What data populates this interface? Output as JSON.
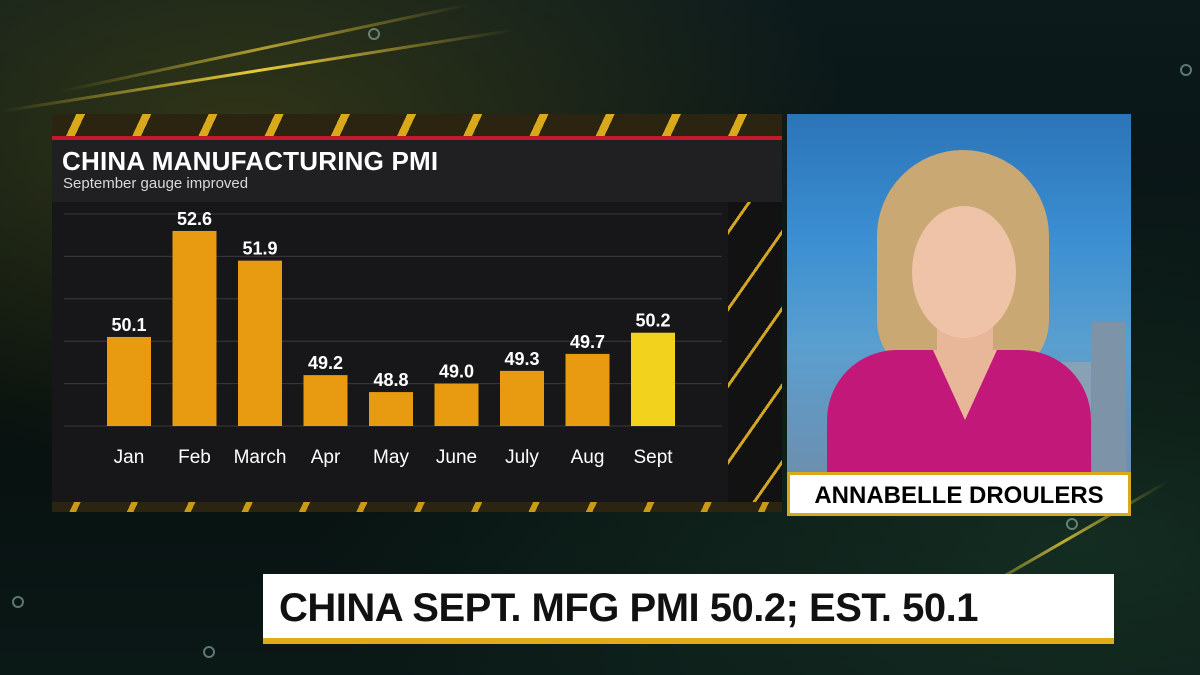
{
  "chart_data": {
    "type": "bar",
    "title": "CHINA MANUFACTURING PMI",
    "subtitle": "September gauge improved",
    "categories": [
      "Jan",
      "Feb",
      "March",
      "Apr",
      "May",
      "June",
      "July",
      "Aug",
      "Sept"
    ],
    "values": [
      50.1,
      52.6,
      51.9,
      49.2,
      48.8,
      49.0,
      49.3,
      49.7,
      50.2
    ],
    "value_labels": [
      "50.1",
      "52.6",
      "51.9",
      "49.2",
      "48.8",
      "49.0",
      "49.3",
      "49.7",
      "50.2"
    ],
    "ylim": [
      48.0,
      53.0
    ],
    "grid": true,
    "colors": {
      "bar": "#e89a10",
      "highlight_bar": "#f2d21c",
      "highlight_index": 8,
      "grid": "#3a3a3c",
      "text": "#ffffff"
    }
  },
  "name_plate": {
    "name": "ANNABELLE DROULERS"
  },
  "lower_third": {
    "headline": "CHINA SEPT. MFG PMI 50.2; EST. 50.1"
  },
  "colors": {
    "accent_gold": "#d9a81c",
    "accent_red": "#c5182a"
  }
}
